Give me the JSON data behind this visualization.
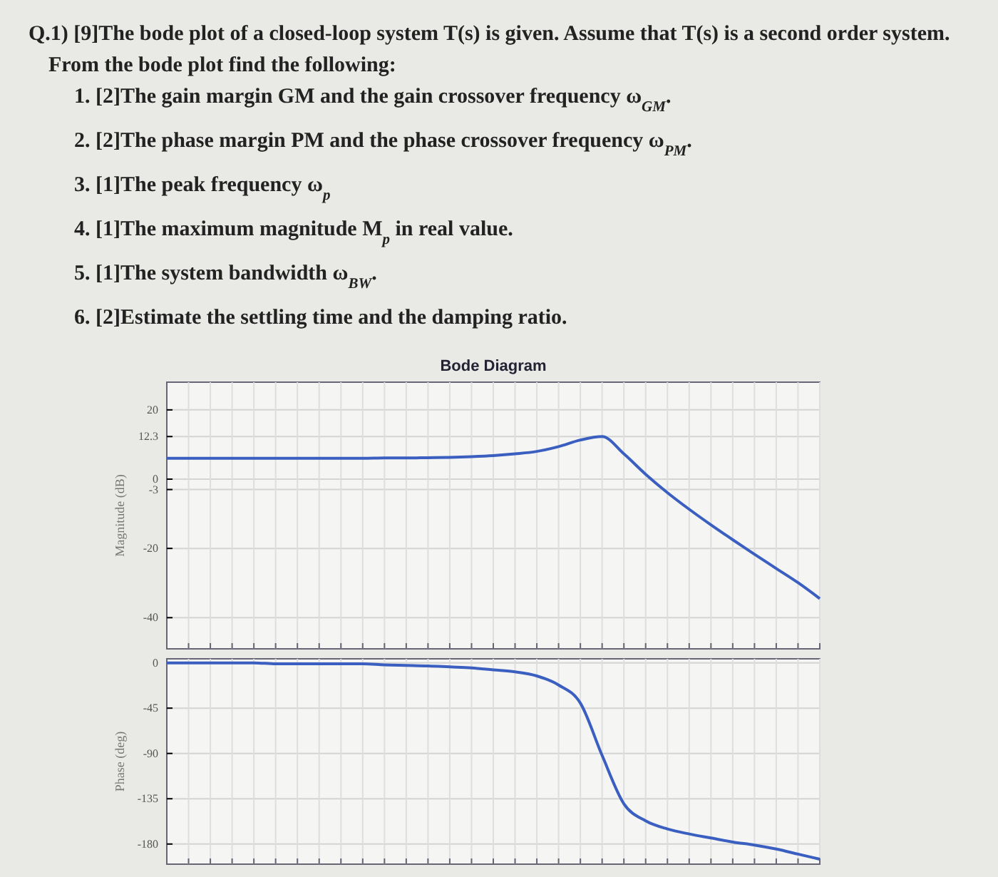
{
  "chart_data": [
    {
      "type": "line",
      "title": "Bode Diagram",
      "ylabel": "Magnitude (dB)",
      "annotations": [
        "Q.1) [9]The bode plot of a closed-loop system T(s) is given. Assume that T(s) is a second order system. From the bode plot find the following:",
        "1. [2]The gain margin GM and the gain crossover frequency ω$_{GM}$.",
        "2. [2]The phase margin PM and the phase crossover frequency ω$_{PM}$.",
        "3. [1]The peak frequency ω$_{p}$",
        "4. [1]The maximum magnitude M$_{p}$ in real value.",
        "5. [1]The system bandwidth ω$_{BW}$.",
        "6. [2]Estimate the settling time and the damping ratio."
      ],
      "categories": [
        null,
        null,
        null,
        null,
        null,
        null,
        null,
        null,
        null,
        null,
        null,
        null,
        null,
        null,
        null,
        null,
        null,
        null,
        null,
        null,
        null,
        null,
        null,
        null,
        null,
        null,
        null,
        null,
        null,
        null,
        null
      ],
      "series": [
        {
          "color": "#3a5fc0",
          "values": [
            6,
            6,
            6,
            6,
            6,
            6,
            6,
            6,
            6,
            6,
            6.1,
            6.1,
            6.2,
            6.3,
            6.5,
            6.8,
            7.3,
            8,
            9.4,
            11.3,
            12.3,
            7.3,
            1.4,
            -3.9,
            -8.7,
            -13.2,
            -17.5,
            -21.7,
            -25.8,
            -29.9,
            -34.5
          ]
        }
      ],
      "ylim": [
        -49,
        28
      ],
      "yticks": [
        -40,
        -20,
        -3,
        0,
        12.3,
        20
      ],
      "grid": true,
      "tick_labels": "y"
    },
    {
      "type": "line",
      "ylabel": "Phase (deg)",
      "categories": [
        null,
        null,
        null,
        null,
        null,
        null,
        null,
        null,
        null,
        null,
        null,
        null,
        null,
        null,
        null,
        null,
        null,
        null,
        null,
        null,
        null,
        null,
        null,
        null,
        null,
        null,
        null,
        null,
        null,
        null,
        null
      ],
      "series": [
        {
          "color": "#3a5fc0",
          "values": [
            0,
            0,
            0,
            0,
            0,
            -1,
            -1,
            -1,
            -1,
            -1,
            -2,
            -2.5,
            -3,
            -4,
            -5,
            -7,
            -9,
            -13,
            -22,
            -40,
            -92,
            -140,
            -157,
            -165,
            -170,
            -174,
            -178,
            -181,
            -185,
            -190,
            -195
          ]
        }
      ],
      "ylim": [
        -200,
        4
      ],
      "yticks": [
        -180,
        -135,
        -90,
        -45,
        0
      ],
      "grid": true,
      "tick_labels": "y"
    }
  ]
}
